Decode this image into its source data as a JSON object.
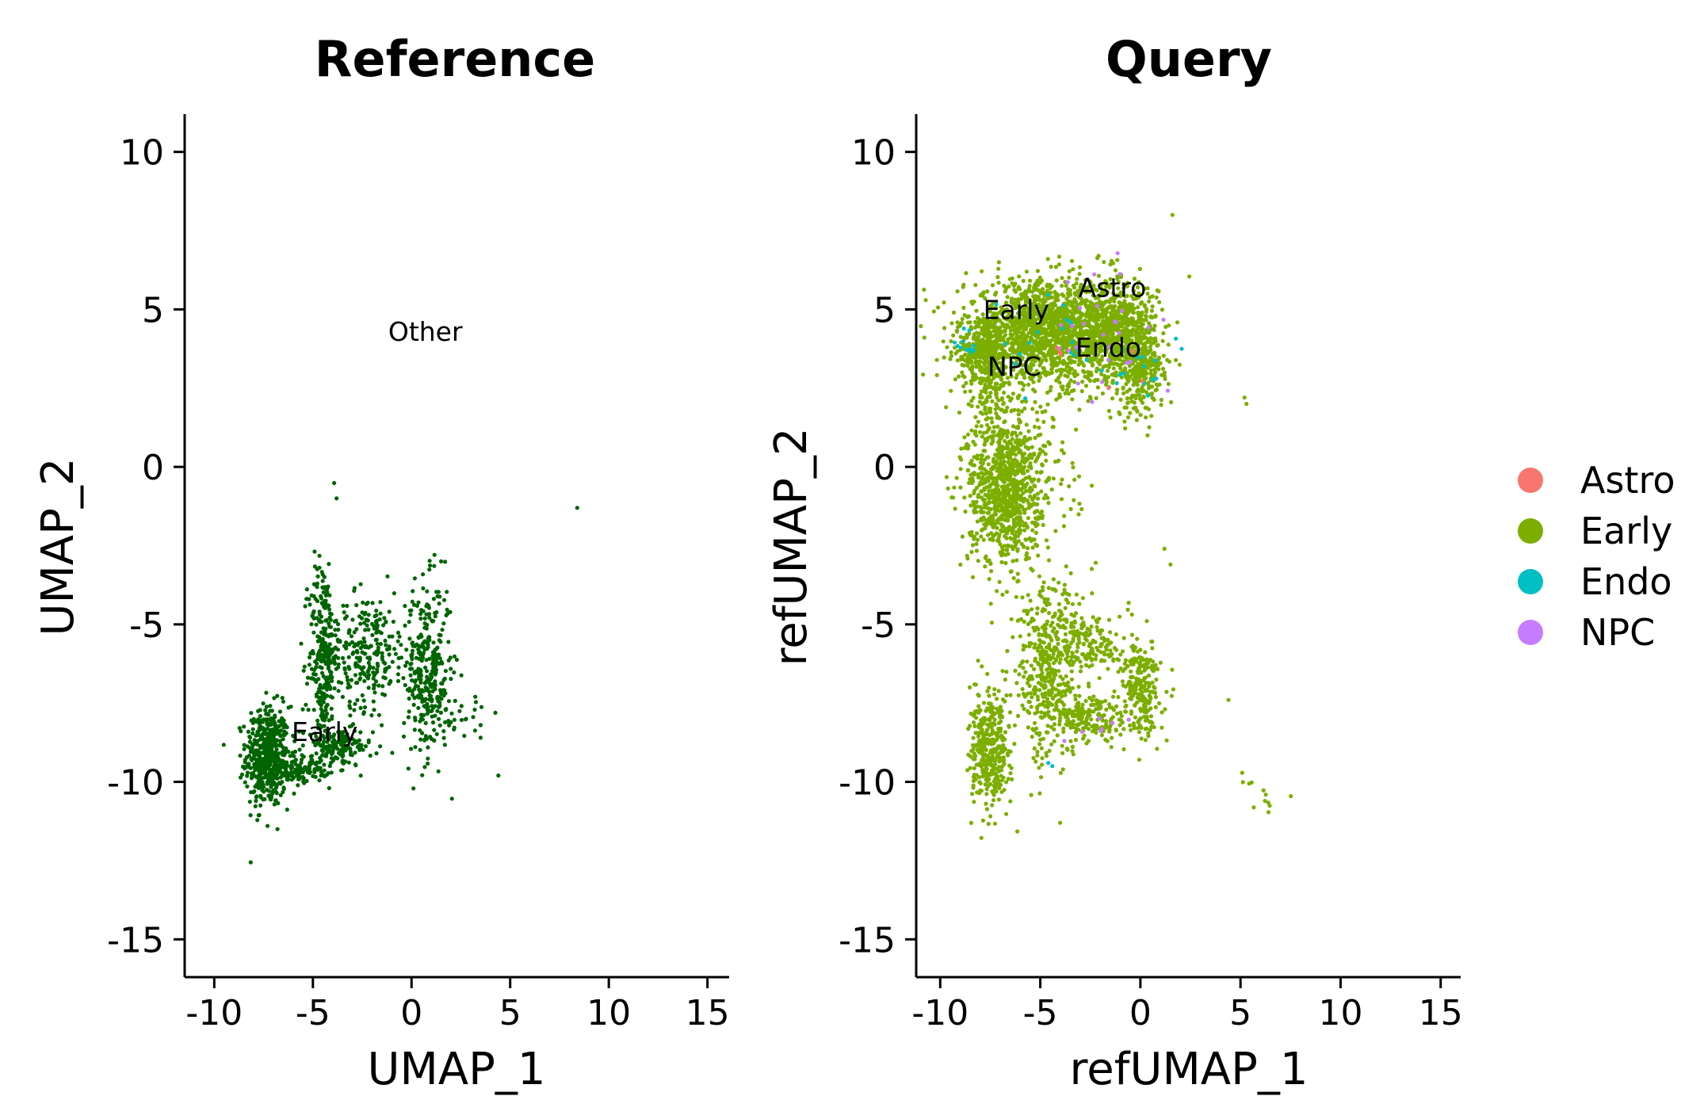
{
  "chart_data": [
    {
      "type": "scatter",
      "title": "Reference",
      "xlabel": "UMAP_1",
      "ylabel": "UMAP_2",
      "xlim": [
        -11.5,
        16.1
      ],
      "ylim": [
        -16.2,
        11.2
      ],
      "xticks": [
        -10,
        -5,
        0,
        5,
        10,
        15
      ],
      "yticks": [
        -15,
        -10,
        -5,
        0,
        5,
        10
      ],
      "xtick_labels": [
        "-10",
        "-5",
        "0",
        "5",
        "10",
        "15"
      ],
      "ytick_labels": [
        "-15",
        "-10",
        "-5",
        "0",
        "5",
        "10"
      ],
      "point_color": "#006400",
      "cluster_labels": [
        {
          "text": "Other",
          "x": 0.7,
          "y": 4.0
        },
        {
          "text": "Early",
          "x": -4.4,
          "y": -8.7
        }
      ],
      "clusters": [
        {
          "cx": -7.3,
          "cy": -9.2,
          "sx": 0.55,
          "sy": 0.8,
          "n": 520,
          "label": "Early"
        },
        {
          "cx": -5.6,
          "cy": -9.6,
          "sx": 0.7,
          "sy": 0.2,
          "n": 120,
          "label": "Early"
        },
        {
          "cx": -3.8,
          "cy": -8.9,
          "sx": 0.9,
          "sy": 0.3,
          "n": 150,
          "label": "Early"
        },
        {
          "cx": -4.5,
          "cy": -6.0,
          "sx": 0.35,
          "sy": 1.6,
          "n": 260,
          "label": "Early"
        },
        {
          "cx": -2.3,
          "cy": -5.8,
          "sx": 1.0,
          "sy": 0.9,
          "n": 260,
          "label": "Early"
        },
        {
          "cx": 0.8,
          "cy": -6.5,
          "sx": 0.6,
          "sy": 1.4,
          "n": 330,
          "label": "Early"
        },
        {
          "cx": 2.2,
          "cy": -7.8,
          "sx": 0.8,
          "sy": 0.3,
          "n": 30,
          "label": "Early"
        }
      ],
      "points": [
        {
          "x": -3.8,
          "y": -1.0
        },
        {
          "x": 8.4,
          "y": -1.3
        },
        {
          "x": 1.5,
          "y": -3.0
        },
        {
          "x": 4.4,
          "y": -9.8
        },
        {
          "x": 3.5,
          "y": -8.6
        },
        {
          "x": 3.5,
          "y": -8.2
        }
      ]
    },
    {
      "type": "scatter",
      "title": "Query",
      "xlabel": "refUMAP_1",
      "ylabel": "refUMAP_2",
      "xlim": [
        -11.2,
        16.0
      ],
      "ylim": [
        -16.2,
        11.2
      ],
      "xticks": [
        -10,
        -5,
        0,
        5,
        10,
        15
      ],
      "yticks": [
        -15,
        -10,
        -5,
        0,
        5,
        10
      ],
      "xtick_labels": [
        "-10",
        "-5",
        "0",
        "5",
        "10",
        "15"
      ],
      "ytick_labels": [
        "-15",
        "-10",
        "-5",
        "0",
        "5",
        "10"
      ],
      "cluster_labels": [
        {
          "text": "Astro",
          "x": -1.4,
          "y": 5.4
        },
        {
          "text": "Early",
          "x": -6.2,
          "y": 4.7
        },
        {
          "text": "Endo",
          "x": -1.6,
          "y": 3.5
        },
        {
          "text": "NPC",
          "x": -6.3,
          "y": 2.9
        }
      ],
      "series": [
        {
          "name": "Astro",
          "color": "#F8766D"
        },
        {
          "name": "Early",
          "color": "#7CAE00"
        },
        {
          "name": "Endo",
          "color": "#00BFC4"
        },
        {
          "name": "NPC",
          "color": "#C77CFF"
        }
      ],
      "clusters": [
        {
          "cx": -4.8,
          "cy": 4.3,
          "sx": 2.0,
          "sy": 0.8,
          "n": 1500,
          "series": "Early"
        },
        {
          "cx": -1.2,
          "cy": 4.3,
          "sx": 1.0,
          "sy": 0.8,
          "n": 700,
          "series": "Early"
        },
        {
          "cx": 0.0,
          "cy": 3.0,
          "sx": 0.6,
          "sy": 0.7,
          "n": 250,
          "series": "Early"
        },
        {
          "cx": -7.9,
          "cy": 3.6,
          "sx": 0.6,
          "sy": 0.6,
          "n": 250,
          "series": "Early"
        },
        {
          "cx": -7.4,
          "cy": 2.5,
          "sx": 0.4,
          "sy": 0.7,
          "n": 100,
          "series": "Early"
        },
        {
          "cx": -6.8,
          "cy": -0.7,
          "sx": 0.9,
          "sy": 1.2,
          "n": 900,
          "series": "Early"
        },
        {
          "cx": -5.0,
          "cy": -0.3,
          "sx": 1.2,
          "sy": 2.2,
          "n": 120,
          "series": "Early"
        },
        {
          "cx": -4.7,
          "cy": -6.5,
          "sx": 0.7,
          "sy": 1.4,
          "n": 400,
          "series": "Early"
        },
        {
          "cx": -2.5,
          "cy": -5.6,
          "sx": 0.8,
          "sy": 0.5,
          "n": 150,
          "series": "Early"
        },
        {
          "cx": -2.6,
          "cy": -8.0,
          "sx": 0.9,
          "sy": 0.4,
          "n": 180,
          "series": "Early"
        },
        {
          "cx": 0.0,
          "cy": -7.0,
          "sx": 0.5,
          "sy": 0.8,
          "n": 250,
          "series": "Early"
        },
        {
          "cx": -7.5,
          "cy": -9.0,
          "sx": 0.5,
          "sy": 0.9,
          "n": 380,
          "series": "Early"
        },
        {
          "cx": 5.9,
          "cy": -10.5,
          "sx": 0.5,
          "sy": 0.4,
          "n": 12,
          "series": "Early"
        },
        {
          "cx": -5.0,
          "cy": 4.0,
          "sx": 2.2,
          "sy": 0.8,
          "n": 25,
          "series": "Endo"
        },
        {
          "cx": 0.2,
          "cy": 3.2,
          "sx": 0.6,
          "sy": 0.5,
          "n": 12,
          "series": "Endo"
        },
        {
          "cx": -8.6,
          "cy": 4.1,
          "sx": 0.3,
          "sy": 0.3,
          "n": 8,
          "series": "Endo"
        },
        {
          "cx": -2.0,
          "cy": 5.0,
          "sx": 1.2,
          "sy": 0.8,
          "n": 18,
          "series": "NPC"
        },
        {
          "cx": -1.2,
          "cy": 3.8,
          "sx": 1.5,
          "sy": 1.0,
          "n": 10,
          "series": "NPC"
        },
        {
          "cx": -2.0,
          "cy": -8.2,
          "sx": 0.5,
          "sy": 0.3,
          "n": 6,
          "series": "NPC"
        },
        {
          "cx": -3.0,
          "cy": 3.5,
          "sx": 1.8,
          "sy": 0.8,
          "n": 6,
          "series": "Astro"
        }
      ],
      "points": [
        {
          "x": 1.6,
          "y": 8.0,
          "series": "Early"
        },
        {
          "x": 5.2,
          "y": 2.2,
          "series": "Early"
        },
        {
          "x": 5.3,
          "y": 2.0,
          "series": "Early"
        },
        {
          "x": 1.2,
          "y": -2.6,
          "series": "Early"
        },
        {
          "x": 1.5,
          "y": -3.1,
          "series": "Early"
        },
        {
          "x": 4.4,
          "y": -7.4,
          "series": "Early"
        },
        {
          "x": -4.6,
          "y": -9.4,
          "series": "Endo"
        },
        {
          "x": -4.4,
          "y": -9.5,
          "series": "Endo"
        },
        {
          "x": -3.8,
          "y": -8.7,
          "series": "NPC"
        }
      ]
    }
  ]
}
